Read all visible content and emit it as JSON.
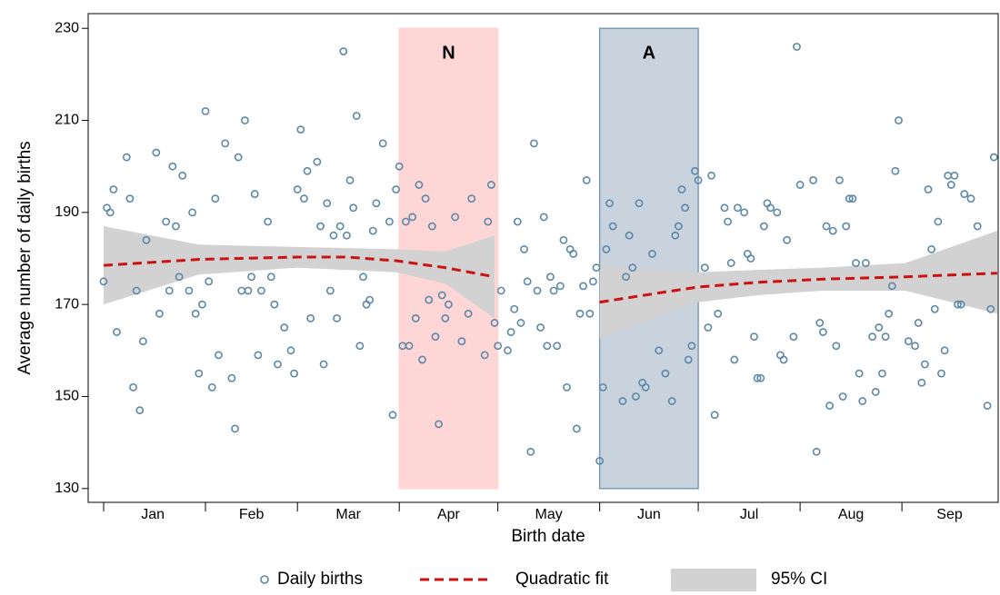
{
  "chart_data": {
    "type": "scatter",
    "xlabel": "Birth date",
    "ylabel": "Average number of daily births",
    "xlim": [
      -3.7,
      273.3
    ],
    "ylim": [
      127,
      233.2
    ],
    "yticks": [
      130,
      150,
      170,
      190,
      210,
      230
    ],
    "xticks": [
      1,
      32,
      60,
      91,
      121,
      152,
      182,
      213,
      244
    ],
    "xtick_labels": [
      {
        "value": 16,
        "label": "Jan"
      },
      {
        "value": 46,
        "label": "Feb"
      },
      {
        "value": 75.5,
        "label": "Mar"
      },
      {
        "value": 106,
        "label": "Apr"
      },
      {
        "value": 136.5,
        "label": "May"
      },
      {
        "value": 167,
        "label": "Jun"
      },
      {
        "value": 197.5,
        "label": "Jul"
      },
      {
        "value": 228.5,
        "label": "Aug"
      },
      {
        "value": 258.5,
        "label": "Sep"
      }
    ],
    "regions": [
      {
        "label": "N",
        "x": [
          91,
          121
        ],
        "y": [
          130,
          230
        ],
        "color": "#ffd6d6",
        "edge": "#ffd6d6"
      },
      {
        "label": "A",
        "x": [
          152,
          182
        ],
        "y": [
          130,
          230
        ],
        "color": "#c9d3dd",
        "edge": "#7f9ab5"
      }
    ],
    "ci": {
      "name": "95% CI",
      "color": "#d2d2d2",
      "x": [
        1,
        30,
        60,
        90,
        105,
        120,
        null,
        152,
        170,
        182,
        200,
        220,
        245,
        273
      ],
      "upper": [
        187,
        183,
        182.5,
        182,
        181.5,
        185,
        null,
        178.5,
        177.5,
        177,
        177.5,
        178,
        179,
        186
      ],
      "lower": [
        170,
        176.5,
        178,
        177,
        174.5,
        167,
        null,
        162.5,
        167.5,
        170.5,
        172,
        173,
        173,
        168
      ]
    },
    "fit": {
      "name": "Quadratic fit",
      "color": "#cc1111",
      "x": [
        1,
        30,
        60,
        75,
        90,
        105,
        120,
        null,
        152,
        170,
        182,
        200,
        220,
        245,
        273
      ],
      "y": [
        178.5,
        179.8,
        180.3,
        180.3,
        179.5,
        178,
        176,
        null,
        170.5,
        172.5,
        173.8,
        174.8,
        175.5,
        176,
        176.8
      ]
    },
    "series": [
      {
        "name": "Daily births",
        "color": "#5b87a8",
        "x": [
          1,
          2,
          3,
          4,
          5,
          8,
          9,
          10,
          11,
          12,
          13,
          14,
          17,
          18,
          20,
          21,
          22,
          23,
          24,
          25,
          27,
          28,
          29,
          30,
          31,
          32,
          33,
          34,
          35,
          36,
          38,
          40,
          41,
          42,
          43,
          44,
          45,
          46,
          47,
          48,
          49,
          51,
          52,
          53,
          54,
          56,
          58,
          59,
          60,
          61,
          62,
          63,
          64,
          66,
          67,
          68,
          69,
          70,
          71,
          72,
          73,
          74,
          75,
          76,
          77,
          78,
          79,
          80,
          81,
          82,
          83,
          84,
          86,
          88,
          89,
          90,
          91,
          92,
          93,
          94,
          95,
          96,
          97,
          98,
          99,
          100,
          101,
          102,
          103,
          104,
          105,
          106,
          108,
          110,
          112,
          113,
          117,
          118,
          119,
          120,
          121,
          122,
          124,
          125,
          126,
          127,
          128,
          129,
          130,
          131,
          132,
          133,
          134,
          135,
          136,
          137,
          138,
          139,
          140,
          141,
          142,
          143,
          144,
          145,
          146,
          147,
          148,
          149,
          150,
          151,
          152,
          153,
          154,
          155,
          156,
          159,
          160,
          161,
          162,
          163,
          164,
          165,
          166,
          168,
          170,
          172,
          174,
          175,
          176,
          177,
          178,
          179,
          180,
          181,
          182,
          184,
          185,
          186,
          187,
          188,
          190,
          191,
          192,
          193,
          194,
          196,
          197,
          198,
          199,
          200,
          201,
          202,
          203,
          204,
          206,
          207,
          208,
          209,
          211,
          212,
          213,
          217,
          218,
          219,
          220,
          221,
          222,
          223,
          224,
          225,
          226,
          227,
          228,
          229,
          230,
          231,
          232,
          233,
          235,
          236,
          237,
          238,
          239,
          240,
          241,
          242,
          243,
          246,
          248,
          249,
          250,
          251,
          252,
          253,
          254,
          255,
          256,
          257,
          258,
          259,
          260,
          261,
          262,
          263,
          265,
          267,
          270,
          271,
          272
        ],
        "values": [
          175,
          191,
          190,
          195,
          164,
          202,
          193,
          152,
          173,
          147,
          162,
          184,
          203,
          168,
          188,
          173,
          200,
          187,
          176,
          198,
          173,
          190,
          168,
          155,
          170,
          212,
          175,
          152,
          193,
          159,
          205,
          154,
          143,
          202,
          173,
          210,
          173,
          176,
          194,
          159,
          173,
          188,
          176,
          170,
          157,
          165,
          160,
          155,
          195,
          208,
          193,
          199,
          167,
          201,
          187,
          157,
          192,
          173,
          185,
          167,
          187,
          225,
          185,
          197,
          191,
          211,
          161,
          176,
          170,
          171,
          186,
          192,
          205,
          188,
          146,
          195,
          200,
          161,
          188,
          161,
          189,
          167,
          196,
          158,
          193,
          171,
          187,
          163,
          144,
          172,
          167,
          170,
          189,
          162,
          168,
          193,
          159,
          188,
          196,
          166,
          161,
          173,
          160,
          164,
          169,
          188,
          166,
          182,
          175,
          138,
          205,
          173,
          165,
          189,
          161,
          176,
          173,
          161,
          174,
          184,
          152,
          182,
          181,
          143,
          168,
          174,
          197,
          168,
          175,
          178,
          136,
          152,
          182,
          192,
          187,
          149,
          176,
          185,
          178,
          150,
          192,
          153,
          152,
          181,
          160,
          155,
          149,
          185,
          187,
          195,
          191,
          158,
          161,
          199,
          197,
          178,
          165,
          198,
          146,
          168,
          191,
          188,
          179,
          158,
          191,
          190,
          181,
          180,
          163,
          154,
          154,
          187,
          192,
          191,
          190,
          159,
          158,
          184,
          163,
          226,
          196,
          197,
          138,
          166,
          164,
          187,
          148,
          186,
          161,
          197,
          150,
          187,
          193,
          193,
          179,
          155,
          149,
          179,
          163,
          151,
          165,
          155,
          163,
          168,
          174,
          199,
          210,
          162,
          161,
          166,
          153,
          157,
          195,
          182,
          169,
          188,
          155,
          160,
          198,
          196,
          198,
          170,
          170,
          194,
          193,
          187,
          148,
          169,
          202
        ]
      }
    ]
  }
}
